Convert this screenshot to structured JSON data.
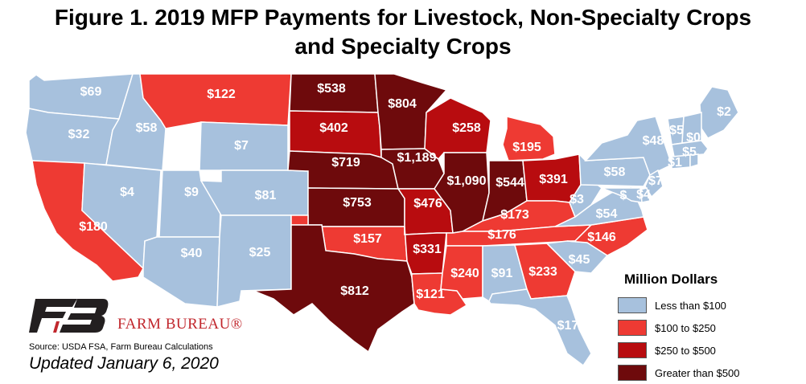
{
  "title_line1": "Figure 1. 2019 MFP Payments for Livestock, Non-Specialty Crops",
  "title_line2": "and Specialty Crops",
  "colors": {
    "lt100": "#a7c1dd",
    "100to250": "#ee3a33",
    "250to500": "#b80c0f",
    "gt500": "#6e0a0c"
  },
  "legend": {
    "title": "Million Dollars",
    "items": [
      {
        "label": "Less than $100",
        "class": "lt100"
      },
      {
        "label": "$100 to $250",
        "class": "100to250"
      },
      {
        "label": "$250 to $500",
        "class": "250to500"
      },
      {
        "label": "Greater than $500",
        "class": "gt500"
      }
    ]
  },
  "states": [
    {
      "id": "WA",
      "value": "$69",
      "class": "lt100"
    },
    {
      "id": "OR",
      "value": "$32",
      "class": "lt100"
    },
    {
      "id": "CA",
      "value": "$180",
      "class": "100to250"
    },
    {
      "id": "ID",
      "value": "$58",
      "class": "lt100"
    },
    {
      "id": "NV",
      "value": "$4",
      "class": "lt100"
    },
    {
      "id": "MT",
      "value": "$122",
      "class": "100to250"
    },
    {
      "id": "WY",
      "value": "$7",
      "class": "lt100"
    },
    {
      "id": "UT",
      "value": "$9",
      "class": "lt100"
    },
    {
      "id": "AZ",
      "value": "$40",
      "class": "lt100"
    },
    {
      "id": "CO",
      "value": "$81",
      "class": "lt100"
    },
    {
      "id": "NM",
      "value": "$25",
      "class": "lt100"
    },
    {
      "id": "ND",
      "value": "$538",
      "class": "gt500"
    },
    {
      "id": "SD",
      "value": "$402",
      "class": "250to500"
    },
    {
      "id": "NE",
      "value": "$719",
      "class": "gt500"
    },
    {
      "id": "KS",
      "value": "$753",
      "class": "gt500"
    },
    {
      "id": "OK",
      "value": "$157",
      "class": "100to250"
    },
    {
      "id": "TX",
      "value": "$812",
      "class": "gt500"
    },
    {
      "id": "MN",
      "value": "$804",
      "class": "gt500"
    },
    {
      "id": "IA",
      "value": "$1,189",
      "class": "gt500"
    },
    {
      "id": "MO",
      "value": "$476",
      "class": "250to500"
    },
    {
      "id": "AR",
      "value": "$331",
      "class": "250to500"
    },
    {
      "id": "LA",
      "value": "$121",
      "class": "100to250"
    },
    {
      "id": "WI",
      "value": "$258",
      "class": "250to500"
    },
    {
      "id": "IL",
      "value": "$1,090",
      "class": "gt500"
    },
    {
      "id": "MI",
      "value": "$195",
      "class": "100to250"
    },
    {
      "id": "IN",
      "value": "$544",
      "class": "gt500"
    },
    {
      "id": "OH",
      "value": "$391",
      "class": "250to500"
    },
    {
      "id": "KY",
      "value": "$173",
      "class": "100to250"
    },
    {
      "id": "TN",
      "value": "$176",
      "class": "100to250"
    },
    {
      "id": "MS",
      "value": "$240",
      "class": "100to250"
    },
    {
      "id": "AL",
      "value": "$91",
      "class": "lt100"
    },
    {
      "id": "GA",
      "value": "$233",
      "class": "100to250"
    },
    {
      "id": "FL",
      "value": "$17",
      "class": "lt100"
    },
    {
      "id": "SC",
      "value": "$45",
      "class": "lt100"
    },
    {
      "id": "NC",
      "value": "$146",
      "class": "100to250"
    },
    {
      "id": "VA",
      "value": "$54",
      "class": "lt100"
    },
    {
      "id": "WV",
      "value": "$3",
      "class": "lt100"
    },
    {
      "id": "PA",
      "value": "$58",
      "class": "lt100"
    },
    {
      "id": "NY",
      "value": "$48",
      "class": "lt100"
    },
    {
      "id": "ME",
      "value": "$2",
      "class": "lt100"
    },
    {
      "id": "VT",
      "value": "$5",
      "class": "lt100"
    },
    {
      "id": "NH",
      "value": "$0",
      "class": "lt100"
    },
    {
      "id": "MA",
      "value": "$5",
      "class": "lt100"
    },
    {
      "id": "CT",
      "value": "$1",
      "class": "lt100"
    },
    {
      "id": "RI",
      "value": "",
      "class": "lt100"
    },
    {
      "id": "NJ",
      "value": "$7",
      "class": "lt100"
    },
    {
      "id": "DE",
      "value": "$4",
      "class": "lt100"
    },
    {
      "id": "MD",
      "value": "$",
      "class": "lt100"
    }
  ],
  "org_name": "FARM BUREAU®",
  "source": "Source: USDA FSA, Farm Bureau Calculations",
  "updated": "Updated January 6, 2020"
}
